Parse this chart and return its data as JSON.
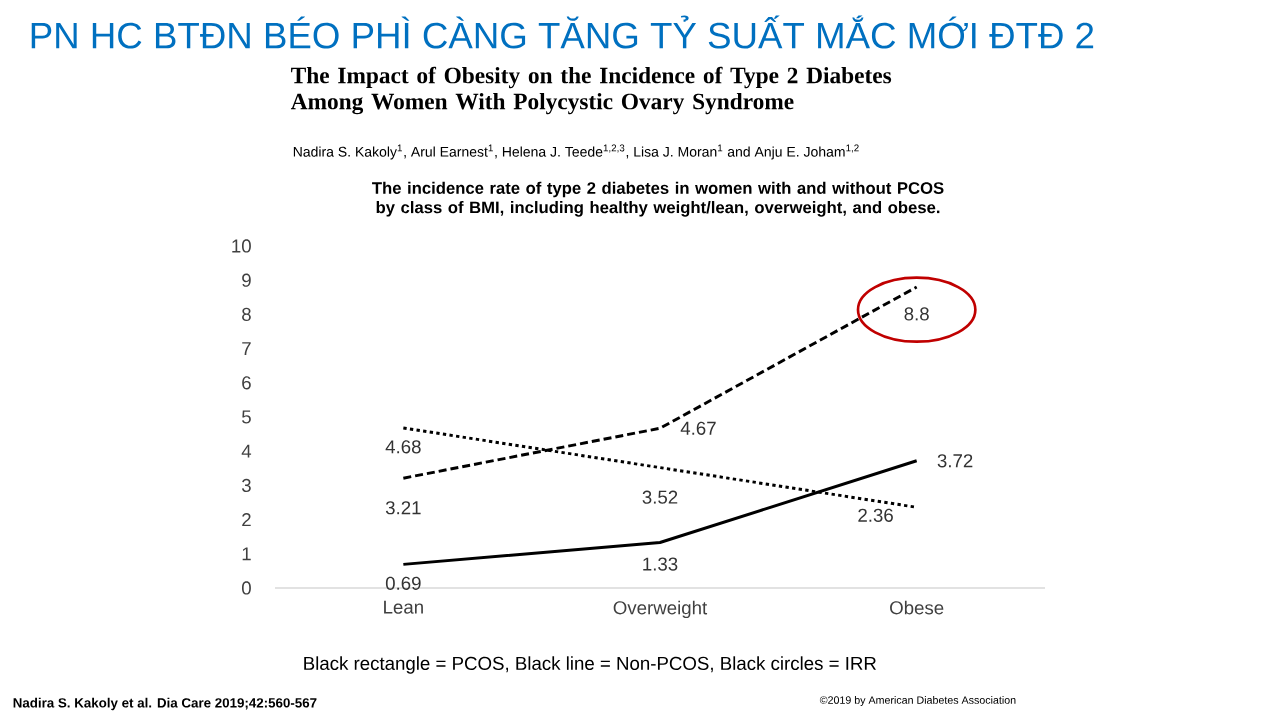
{
  "chart_data": {
    "type": "line",
    "title": "PN HC BTĐN BÉO PHÌ CÀNG TĂNG TỶ SUẤT MẮC MỚI ĐTĐ 2",
    "subtitle": "The Impact of Obesity on the Incidence of Type 2 Diabetes Among Women With Polycystic Ovary Syndrome",
    "annotations": [
      "Nadira S. Kakoly$^{1}$, Arul Earnest$^{1}$, Helena J. Teede$^{1,2,3}$, Lisa J. Moran$^{1}$ and Anju E. Joham$^{1,2}$",
      "**The incidence rate of type 2 diabetes in women with and without PCOS by class of BMI, including healthy weight/lean, overweight, and obese.**",
      "Black rectangle = PCOS, Black line = Non-PCOS, Black circles  = IRR",
      "**Nadira S. Kakoly et al. Dia Care 2019;42:560-567**",
      "©2019 by American Diabetes Association"
    ],
    "categories": [
      "Lean",
      "Overweight",
      "Obese"
    ],
    "series": [
      {
        "color": "#000000",
        "line_style": "dashed",
        "values": [
          3.21,
          4.67,
          8.8
        ]
      },
      {
        "color": "#000000",
        "line_style": "solid",
        "values": [
          0.69,
          1.33,
          3.72
        ]
      },
      {
        "color": "#000000",
        "line_style": "dotted",
        "values": [
          4.68,
          3.52,
          2.36
        ]
      }
    ],
    "ylim": [
      0,
      10
    ],
    "yticks": [
      0,
      1,
      2,
      3,
      4,
      5,
      6,
      7,
      8,
      9,
      10
    ],
    "data_labels": true,
    "grid": false,
    "marker": "none"
  }
}
